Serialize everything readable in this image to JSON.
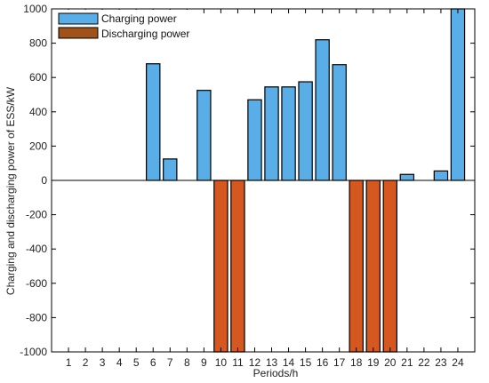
{
  "chart_data": {
    "type": "bar",
    "xlabel": "Periods/h",
    "ylabel": "Charging and discharging power of ESS/kW",
    "ylim": [
      -1000,
      1000
    ],
    "yticks": [
      -1000,
      -800,
      -600,
      -400,
      -200,
      0,
      200,
      400,
      600,
      800,
      1000
    ],
    "categories": [
      "1",
      "2",
      "3",
      "4",
      "5",
      "6",
      "7",
      "8",
      "9",
      "10",
      "11",
      "12",
      "13",
      "14",
      "15",
      "16",
      "17",
      "18",
      "19",
      "20",
      "21",
      "22",
      "23",
      "24"
    ],
    "legend_position": "top-left",
    "grid": false,
    "series": [
      {
        "name": "Charging power",
        "color": "#5aaee7",
        "values": [
          0,
          0,
          0,
          0,
          0,
          680,
          125,
          0,
          525,
          0,
          0,
          470,
          545,
          545,
          575,
          820,
          675,
          0,
          0,
          0,
          35,
          0,
          55,
          1000
        ]
      },
      {
        "name": "Discharging power",
        "color": "#d4581f",
        "legend_color": "#a0521a",
        "values": [
          0,
          0,
          0,
          0,
          0,
          0,
          0,
          0,
          0,
          -1000,
          -1000,
          0,
          0,
          0,
          0,
          0,
          0,
          -1000,
          -1000,
          -1000,
          0,
          0,
          0,
          0
        ]
      }
    ]
  }
}
